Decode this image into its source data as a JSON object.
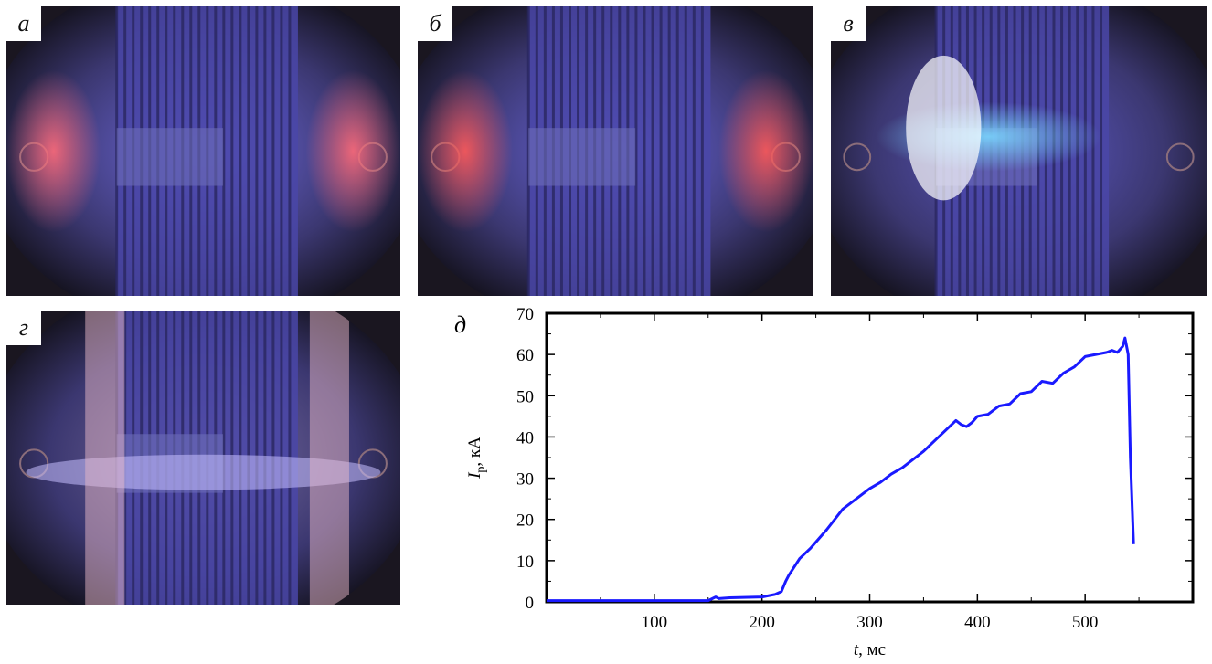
{
  "panels": [
    {
      "label": "а",
      "tint": "#6f6adf",
      "glow": "#ff6b7a"
    },
    {
      "label": "б",
      "tint": "#6a67e0",
      "glow": "#ff5a5a"
    },
    {
      "label": "в",
      "tint": "#5d59c7",
      "glow": "#7ad7ff"
    },
    {
      "label": "г",
      "tint": "#7b6ea0",
      "glow": "#ff8a8a"
    }
  ],
  "chart_label": "д",
  "chart_data": {
    "type": "line",
    "xlabel_var": "t",
    "xlabel_unit": ", мс",
    "ylabel_var": "I",
    "ylabel_sub": "p",
    "ylabel_unit": ", кА",
    "xlim": [
      0,
      600
    ],
    "ylim": [
      0,
      70
    ],
    "xticks": [
      100,
      200,
      300,
      400,
      500
    ],
    "yticks": [
      0,
      10,
      20,
      30,
      40,
      50,
      60,
      70
    ],
    "line_color": "#1a1aff",
    "series": [
      {
        "x": [
          0,
          150,
          157,
          160,
          170,
          200,
          212,
          218,
          222,
          225,
          235,
          245,
          260,
          275,
          290,
          300,
          310,
          320,
          330,
          340,
          350,
          360,
          370,
          380,
          385,
          390,
          395,
          400,
          410,
          420,
          430,
          440,
          450,
          460,
          470,
          480,
          490,
          500,
          510,
          520,
          525,
          530,
          535,
          537,
          540,
          542,
          545
        ],
        "y": [
          0.3,
          0.3,
          1.2,
          0.8,
          1.0,
          1.2,
          1.8,
          2.5,
          5,
          6.5,
          10.5,
          13,
          17.5,
          22.5,
          25.5,
          27.5,
          29,
          31,
          32.5,
          34.5,
          36.5,
          39,
          41.5,
          44,
          43,
          42.5,
          43.5,
          45,
          45.5,
          47.5,
          48,
          50.5,
          51,
          53.5,
          53,
          55.5,
          57,
          59.5,
          60,
          60.5,
          61,
          60.5,
          62,
          64,
          60,
          35,
          14
        ]
      }
    ]
  }
}
